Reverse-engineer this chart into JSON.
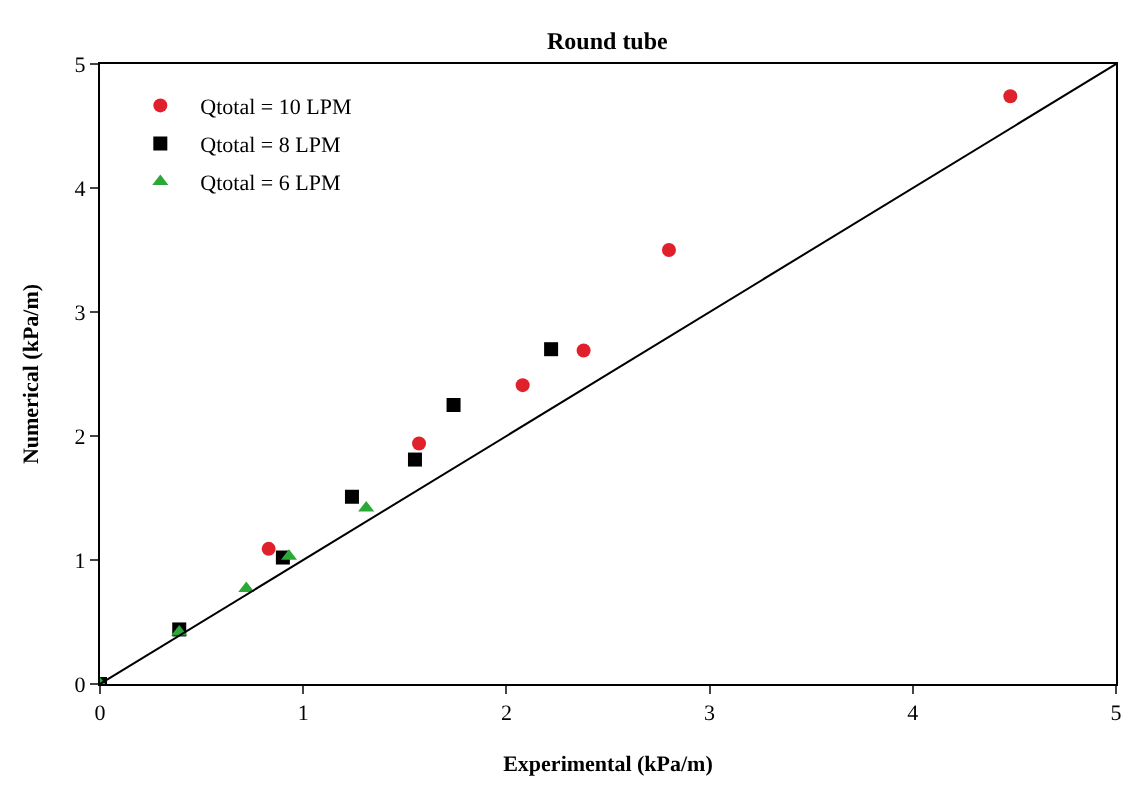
{
  "chart_data": {
    "type": "scatter",
    "title": "Round tube",
    "xlabel": "Experimental (kPa/m)",
    "ylabel": "Numerical (kPa/m)",
    "xlim": [
      0,
      5
    ],
    "ylim": [
      0,
      5
    ],
    "xticks": [
      0,
      1,
      2,
      3,
      4,
      5
    ],
    "yticks": [
      0,
      1,
      2,
      3,
      4,
      5
    ],
    "legend": "top left",
    "series": [
      {
        "name": "Qtotal = 10 LPM",
        "color": "#e0202a",
        "marker": "circle",
        "x": [
          0.83,
          1.57,
          2.08,
          2.38,
          2.8,
          4.48
        ],
        "values": [
          1.09,
          1.94,
          2.41,
          2.69,
          3.5,
          4.74
        ]
      },
      {
        "name": "Qtotal = 8 LPM",
        "color": "#000000",
        "marker": "square",
        "x": [
          0,
          0.39,
          0.9,
          1.24,
          1.55,
          1.74,
          2.22
        ],
        "values": [
          0,
          0.44,
          1.02,
          1.51,
          1.81,
          2.25,
          2.7
        ]
      },
      {
        "name": "Qtotal = 6 LPM",
        "color": "#2ca838",
        "marker": "triangle",
        "x": [
          0,
          0.39,
          0.72,
          0.93,
          1.31
        ],
        "values": [
          0,
          0.42,
          0.77,
          1.03,
          1.42
        ]
      },
      {
        "type": "line",
        "color": "#000000",
        "line_style": "solid",
        "x": [
          0,
          5
        ],
        "values": [
          0,
          5
        ]
      }
    ]
  }
}
